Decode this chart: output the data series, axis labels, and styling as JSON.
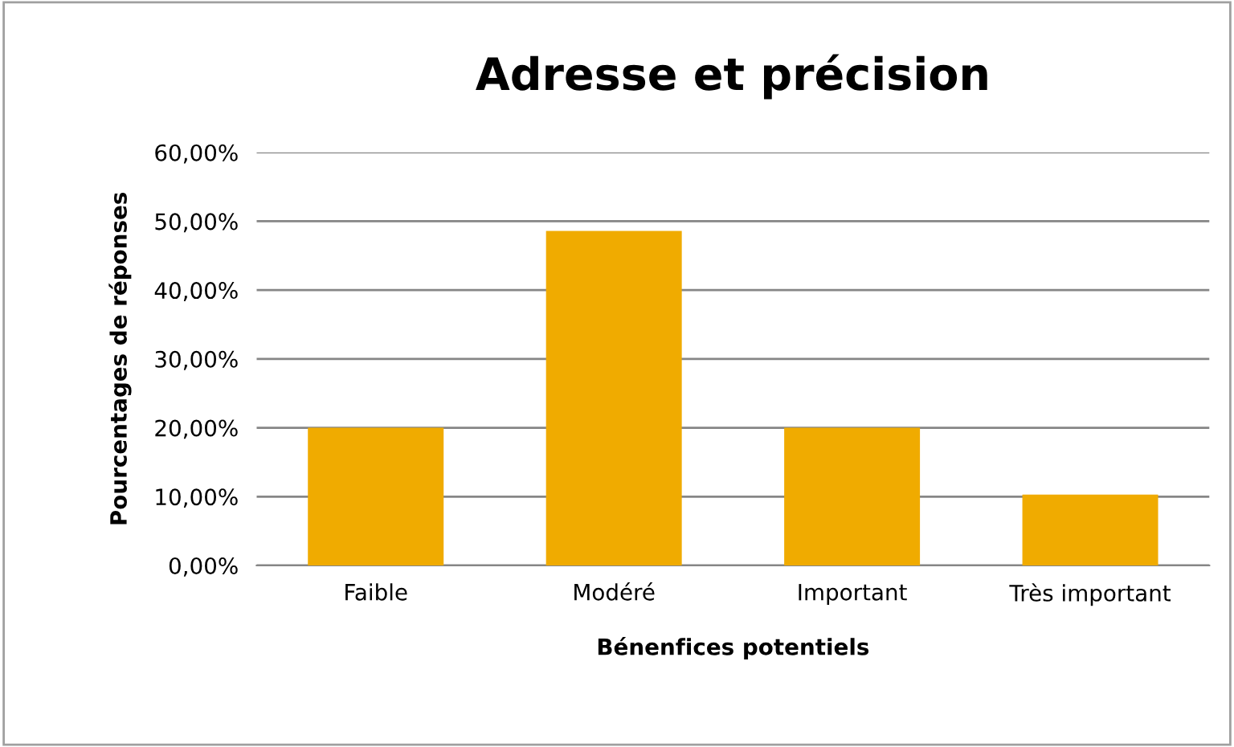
{
  "chart_data": {
    "type": "bar",
    "title": "Adresse et précision",
    "xlabel": "Bénenfices potentiels",
    "ylabel": "Pourcentages de réponses",
    "categories": [
      "Faible",
      "Modéré",
      "Important",
      "Très important"
    ],
    "values": [
      20,
      48.6,
      20,
      10.3
    ],
    "color": "#f0ab00",
    "ylim": [
      0,
      60
    ],
    "yticks": [
      {
        "value": 0,
        "label": "0,00%"
      },
      {
        "value": 10,
        "label": "10,00%"
      },
      {
        "value": 20,
        "label": "20,00%"
      },
      {
        "value": 30,
        "label": "30,00%"
      },
      {
        "value": 40,
        "label": "40,00%"
      },
      {
        "value": 50,
        "label": "50,00%"
      },
      {
        "value": 60,
        "label": "60,00%"
      }
    ],
    "grid": "y"
  }
}
